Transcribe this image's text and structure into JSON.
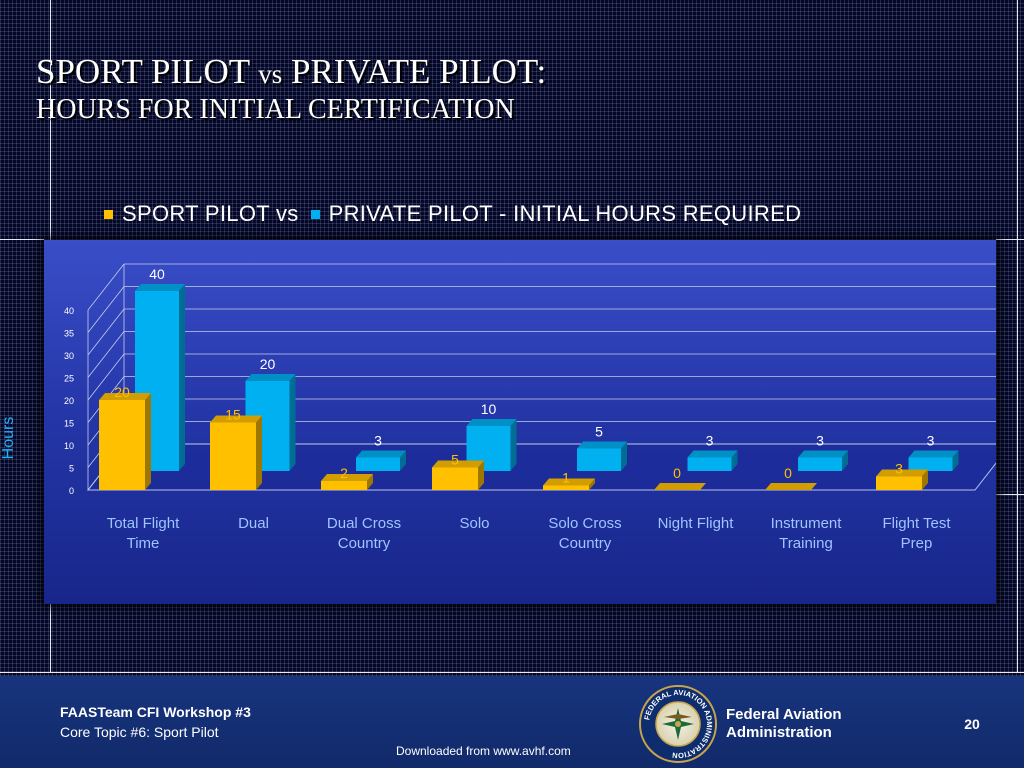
{
  "slide": {
    "title_part1": "SPORT PILOT",
    "title_vs": "vs",
    "title_part2": "PRIVATE PILOT:",
    "subtitle": "HOURS FOR INITIAL CERTIFICATION"
  },
  "colors": {
    "sport": "#ffc000",
    "private": "#00b0f0",
    "axis_label": "#1fb0ff",
    "category_label": "#9fc4ff"
  },
  "chart_data": {
    "type": "bar",
    "title": "SPORT PILOT  vs PRIVATE PILOT  -  INITIAL HOURS REQUIRED",
    "categories": [
      [
        "Total Flight",
        "Time"
      ],
      [
        "Dual"
      ],
      [
        "Dual Cross",
        "Country"
      ],
      [
        "Solo"
      ],
      [
        "Solo Cross",
        "Country"
      ],
      [
        "Night Flight"
      ],
      [
        "Instrument",
        "Training"
      ],
      [
        "Flight Test",
        "Prep"
      ]
    ],
    "series": [
      {
        "name": "SPORT PILOT  vs",
        "values": [
          20,
          15,
          2,
          5,
          1,
          0,
          0,
          3
        ]
      },
      {
        "name": "PRIVATE PILOT  -  INITIAL HOURS REQUIRED",
        "values": [
          40,
          20,
          3,
          10,
          5,
          3,
          3,
          3
        ]
      }
    ],
    "ylabel": "Hours",
    "xlabel": "",
    "ylim": [
      0,
      40
    ],
    "yticks": [
      0,
      5,
      10,
      15,
      20,
      25,
      30,
      35,
      40
    ],
    "legend_position": "top",
    "grid": true
  },
  "footer": {
    "workshop": "FAASTeam CFI Workshop #3",
    "topic": "Core Topic #6: Sport Pilot",
    "download": "Downloaded from www.avhf.com",
    "agency_line1": "Federal Aviation",
    "agency_line2": "Administration",
    "page_number": "20",
    "seal_text": "FEDERAL AVIATION ADMINISTRATION"
  }
}
